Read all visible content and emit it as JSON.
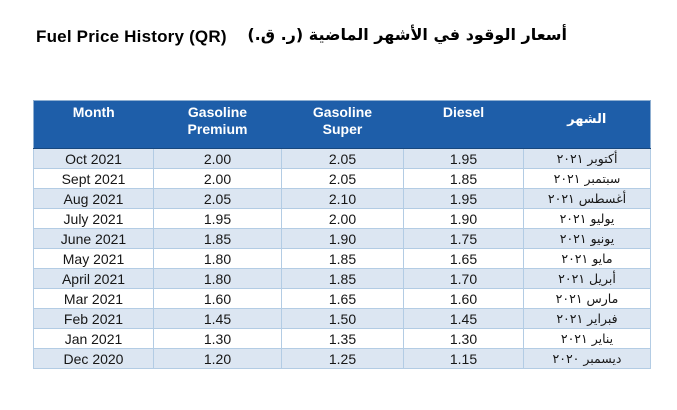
{
  "titles": {
    "english": "Fuel Price History (QR)",
    "arabic": "أسعار الوقود في الأشهر الماضية (ر. ق.)"
  },
  "table": {
    "headers": [
      "Month",
      "Gasoline\nPremium",
      "Gasoline\nSuper",
      "Diesel",
      "الشهر"
    ],
    "rows": [
      [
        "Oct 2021",
        "2.00",
        "2.05",
        "1.95",
        "أكتوبر ٢٠٢١"
      ],
      [
        "Sept 2021",
        "2.00",
        "2.05",
        "1.85",
        "سبتمبر ٢٠٢١"
      ],
      [
        "Aug 2021",
        "2.05",
        "2.10",
        "1.95",
        "أغسطس ٢٠٢١"
      ],
      [
        "July 2021",
        "1.95",
        "2.00",
        "1.90",
        "يوليو ٢٠٢١"
      ],
      [
        "June 2021",
        "1.85",
        "1.90",
        "1.75",
        "يونيو ٢٠٢١"
      ],
      [
        "May 2021",
        "1.80",
        "1.85",
        "1.65",
        "مايو ٢٠٢١"
      ],
      [
        "April 2021",
        "1.80",
        "1.85",
        "1.70",
        "أبريل ٢٠٢١"
      ],
      [
        "Mar 2021",
        "1.60",
        "1.65",
        "1.60",
        "مارس ٢٠٢١"
      ],
      [
        "Feb 2021",
        "1.45",
        "1.50",
        "1.45",
        "فبراير ٢٠٢١"
      ],
      [
        "Jan 2021",
        "1.30",
        "1.35",
        "1.30",
        "يناير ٢٠٢١"
      ],
      [
        "Dec 2020",
        "1.20",
        "1.25",
        "1.15",
        "ديسمبر ٢٠٢٠"
      ]
    ]
  },
  "colors": {
    "header_background": "#1E5EA9",
    "header_text": "#FFFFFF",
    "banded_row_background": "#DCE6F2",
    "plain_row_background": "#FFFFFF",
    "cell_border": "#B3CCE4",
    "table_outer_border": "#8FAFD1",
    "body_text": "#161616"
  }
}
